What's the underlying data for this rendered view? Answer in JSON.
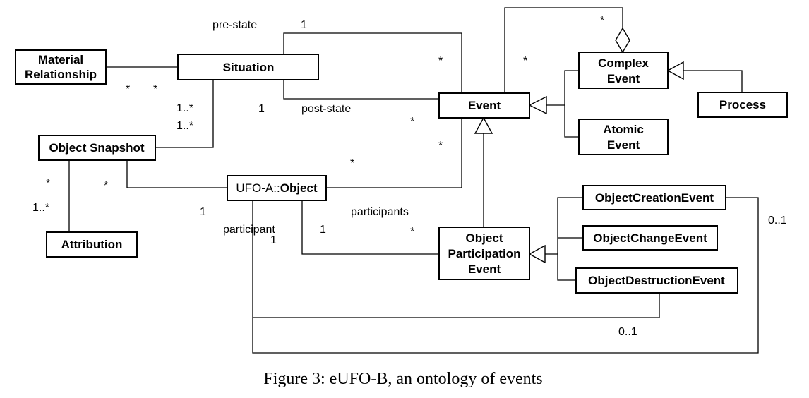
{
  "classes": {
    "material_relationship": [
      "Material",
      "Relationship"
    ],
    "situation": [
      "Situation"
    ],
    "object_snapshot": [
      "Object Snapshot"
    ],
    "attribution": [
      "Attribution"
    ],
    "object": {
      "prefix": "UFO-A::",
      "name": "Object"
    },
    "event": [
      "Event"
    ],
    "complex_event": [
      "Complex",
      "Event"
    ],
    "atomic_event": [
      "Atomic",
      "Event"
    ],
    "process": [
      "Process"
    ],
    "object_participation_event": [
      "Object",
      "Participation",
      "Event"
    ],
    "object_creation_event": [
      "ObjectCreationEvent"
    ],
    "object_change_event": [
      "ObjectChangeEvent"
    ],
    "object_destruction_event": [
      "ObjectDestructionEvent"
    ]
  },
  "labels": {
    "pre_state": "pre-state",
    "pre_state_one": "1",
    "pre_state_many": "*",
    "complex_many_top": "*",
    "complex_many_left": "*",
    "post_state": "post-state",
    "post_state_one": "1",
    "post_state_many": "*",
    "mat_many_1": "*",
    "mat_many_2": "*",
    "snap_1n_a": "1..*",
    "snap_1n_b": "1..*",
    "event_obj_many": "*",
    "obj_event_many": "*",
    "attr_many": "*",
    "attr_1n": "1..*",
    "snap_obj_many": "*",
    "snap_obj_one": "1",
    "participant": "participant",
    "participant_one": "1",
    "participants": "participants",
    "participants_one": "1",
    "participants_many": "*",
    "creation_01": "0..1",
    "destruction_01": "0..1"
  },
  "caption": "Figure 3: eUFO-B, an ontology of events"
}
